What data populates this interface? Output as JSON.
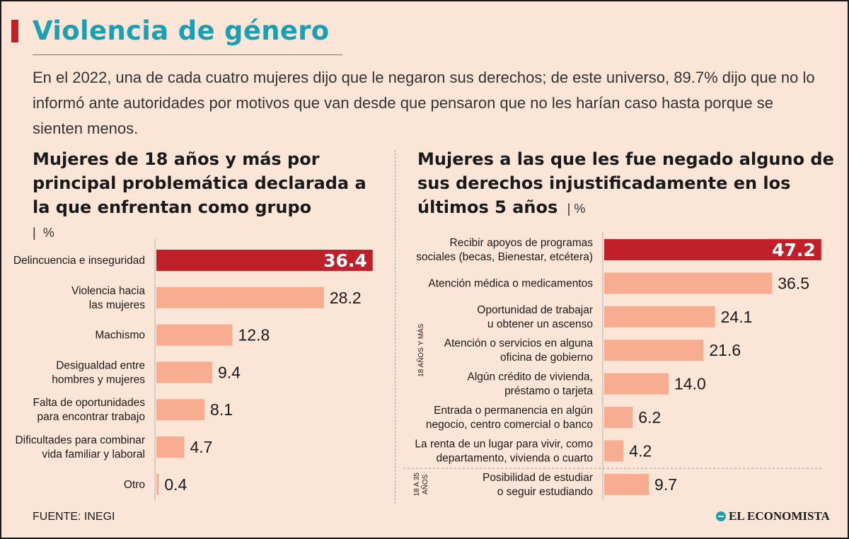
{
  "header": {
    "title": "Violencia de género",
    "intro": "En el 2022, una de cada cuatro mujeres dijo que le negaron sus derechos; de este universo, 89.7% dijo que no lo informó ante autoridades por motivos que van desde que pensaron que no les harían caso hasta porque se sienten menos."
  },
  "chart_data": [
    {
      "type": "bar",
      "orientation": "horizontal",
      "title": "Mujeres de 18 años y más por principal problemática declarada a la que enfrentan como grupo",
      "unit": "%",
      "categories": [
        [
          "Delincuencia e inseguridad"
        ],
        [
          "Violencia hacia",
          "las mujeres"
        ],
        [
          "Machismo"
        ],
        [
          "Desigualdad entre",
          "hombres y mujeres"
        ],
        [
          "Falta de oportunidades",
          "para encontrar trabajo"
        ],
        [
          "Dificultades para combinar",
          "vida familiar y laboral"
        ],
        [
          "Otro"
        ]
      ],
      "values": [
        36.4,
        28.2,
        12.8,
        9.4,
        8.1,
        4.7,
        0.4
      ],
      "value_labels": [
        "36.4",
        "28.2",
        "12.8",
        "9.4",
        "8.1",
        "4.7",
        "0.4"
      ],
      "highlight_index": 0,
      "colors": {
        "bar": "#f8ad90",
        "highlight": "#c0202a"
      }
    },
    {
      "type": "bar",
      "orientation": "horizontal",
      "title": "Mujeres a las que les fue negado alguno de sus derechos injustificadamente en los últimos 5 años",
      "unit": "%",
      "categories": [
        [
          "Recibir apoyos de programas",
          "sociales (becas, Bienestar, etcétera)"
        ],
        [
          "Atención médica o medicamentos"
        ],
        [
          "Oportunidad de trabajar",
          "u obtener un ascenso"
        ],
        [
          "Atención o servicios en alguna",
          "oficina de gobierno"
        ],
        [
          "Algún crédito de vivienda,",
          "préstamo o tarjeta"
        ],
        [
          "Entrada o permanencia en algún",
          "negocio, centro comercial o banco"
        ],
        [
          "La renta de un lugar para vivir, como",
          "departamento, vivienda o cuarto"
        ],
        [
          "Posibilidad de estudiar",
          "o seguir estudiando"
        ]
      ],
      "values": [
        47.2,
        36.5,
        24.1,
        21.6,
        14.0,
        6.2,
        4.2,
        9.7
      ],
      "value_labels": [
        "47.2",
        "36.5",
        "24.1",
        "21.6",
        "14.0",
        "6.2",
        "4.2",
        "9.7"
      ],
      "highlight_index": 0,
      "groups": [
        {
          "label": "18 AÑOS Y MÁS",
          "from": 0,
          "to": 6
        },
        {
          "label_lines": [
            "18 A 35",
            "AÑOS"
          ],
          "from": 7,
          "to": 7
        }
      ],
      "colors": {
        "bar": "#f8ad90",
        "highlight": "#c0202a"
      }
    }
  ],
  "footer": {
    "source": "FUENTE: INEGI",
    "logo": "EL ECONOMISTA"
  }
}
